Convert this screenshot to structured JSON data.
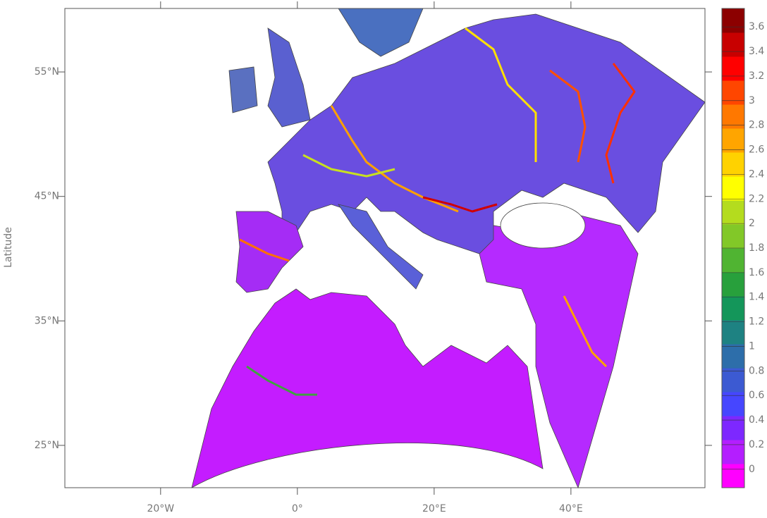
{
  "map": {
    "axis_label": "Latitude",
    "xlim": [
      -34,
      59.6
    ],
    "ylim": [
      21.6,
      60.1
    ],
    "xticks": [
      {
        "value": -20,
        "label": "20°W"
      },
      {
        "value": 0,
        "label": "0°"
      },
      {
        "value": 20,
        "label": "20°E"
      },
      {
        "value": 40,
        "label": "40°E"
      }
    ],
    "yticks": [
      {
        "value": 55,
        "label": "55°N"
      },
      {
        "value": 45,
        "label": "45°N"
      },
      {
        "value": 35,
        "label": "35°N"
      },
      {
        "value": 25,
        "label": "25°N"
      }
    ]
  },
  "colorbar": {
    "lim": [
      -0.15,
      3.75
    ],
    "ticks": [
      0,
      0.2,
      0.4,
      0.6,
      0.8,
      1,
      1.2,
      1.4,
      1.6,
      1.8,
      2,
      2.2,
      2.4,
      2.6,
      2.8,
      3,
      3.2,
      3.4,
      3.6
    ],
    "colors": [
      "#ff00ff",
      "#b41eff",
      "#7d28ff",
      "#4646ff",
      "#3c5ad2",
      "#2d6eaa",
      "#1e8282",
      "#14965a",
      "#28a03c",
      "#50b432",
      "#82c828",
      "#b4dc1e",
      "#ffff00",
      "#ffd200",
      "#ffa500",
      "#ff7800",
      "#ff4600",
      "#ff0000",
      "#c80000",
      "#8c0000"
    ]
  }
}
